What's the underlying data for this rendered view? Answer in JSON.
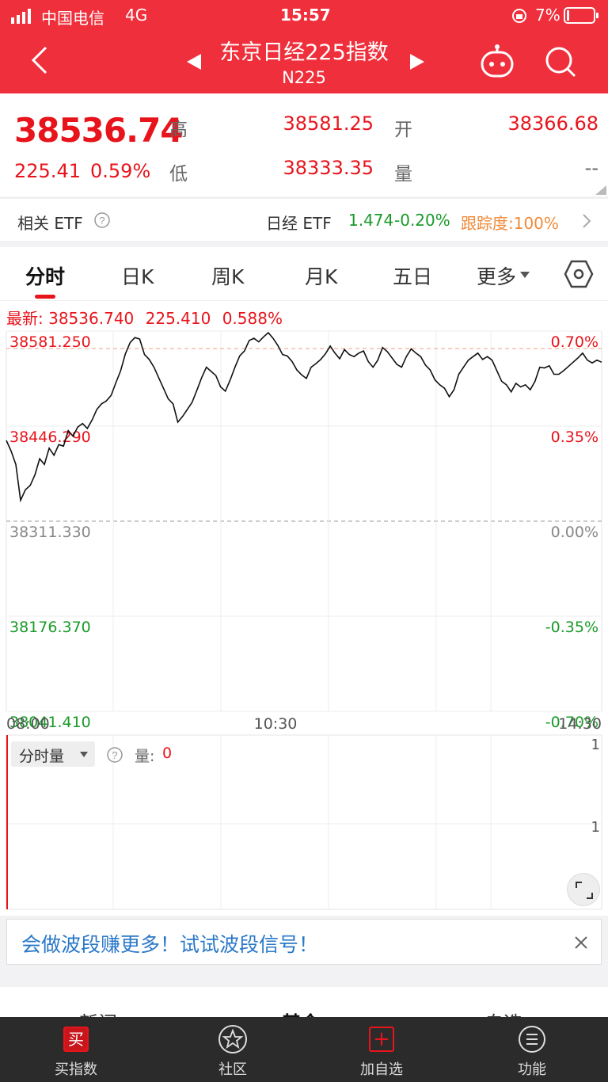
{
  "status_bar": {
    "carrier": "中国电信",
    "network": "4G",
    "time": "15:57",
    "battery": "7%"
  },
  "title_bar": {
    "title": "东京日经225指数",
    "subtitle": "N225"
  },
  "quote": {
    "last": "38536.74",
    "change": "225.41",
    "change_pct": "0.59%",
    "high_label": "高",
    "high": "38581.25",
    "low_label": "低",
    "low": "38333.35",
    "open_label": "开",
    "open": "38366.68",
    "volume_label": "量",
    "volume": "--"
  },
  "etf": {
    "label": "相关 ETF",
    "name": "日经 ETF",
    "price": "1.474",
    "change": "-0.20%",
    "tracking": "跟踪度:100%"
  },
  "tabs": [
    "分时",
    "日K",
    "周K",
    "月K",
    "五日",
    "更多"
  ],
  "chart": {
    "latest_label": "最新:",
    "latest_price": "38536.740",
    "latest_change": "225.410",
    "latest_pct": "0.588%",
    "y_left": [
      "38581.250",
      "38446.290",
      "38311.330",
      "38176.370",
      "38041.410"
    ],
    "y_right": [
      "0.70%",
      "0.35%",
      "0.00%",
      "-0.35%",
      "-0.70%"
    ],
    "x_labels": [
      "08:00",
      "10:30",
      "14:30"
    ],
    "volume_selector": "分时量",
    "volume_label": "量:",
    "volume_value": "0",
    "volume_axis": [
      "1",
      "1"
    ]
  },
  "chart_data": {
    "type": "line",
    "ylim": [
      38041.41,
      38581.25
    ],
    "xlabel": "",
    "ylabel": "",
    "x_ticks": [
      "08:00",
      "10:30",
      "14:30"
    ],
    "series": [
      {
        "values": [
          38426,
          38411,
          38392,
          38341,
          38356,
          38362,
          38377,
          38400,
          38392,
          38415,
          38405,
          38420,
          38418,
          38440,
          38432,
          38445,
          38450,
          38443,
          38455,
          38470,
          38478,
          38482,
          38490,
          38508,
          38525,
          38549,
          38565,
          38572,
          38570,
          38548,
          38541,
          38530,
          38515,
          38500,
          38485,
          38478,
          38452,
          38460,
          38470,
          38480,
          38497,
          38515,
          38530,
          38524,
          38518,
          38502,
          38496,
          38512,
          38530,
          38546,
          38553,
          38568,
          38571,
          38566,
          38573,
          38579,
          38571,
          38561,
          38548,
          38546,
          38538,
          38526,
          38519,
          38514,
          38530,
          38535,
          38541,
          38549,
          38560,
          38550,
          38542,
          38555,
          38548,
          38545,
          38550,
          38553,
          38538,
          38530,
          38540,
          38558,
          38552,
          38543,
          38534,
          38530,
          38545,
          38556,
          38550,
          38545,
          38533,
          38526,
          38512,
          38505,
          38500,
          38488,
          38498,
          38520,
          38530,
          38540,
          38545,
          38550,
          38541,
          38545,
          38540,
          38525,
          38510,
          38505,
          38495,
          38507,
          38502,
          38505,
          38498,
          38510,
          38530,
          38529,
          38532,
          38520,
          38520,
          38525,
          38531,
          38537,
          38543,
          38550,
          38540,
          38536,
          38540,
          38537
        ]
      }
    ],
    "grid": true,
    "baseline": 38311.33
  },
  "banner": {
    "text": "会做波段赚更多！试试波段信号！"
  },
  "lower_tabs": [
    "新闻",
    "基金",
    "自选"
  ],
  "nav": [
    {
      "label": "买指数",
      "icon": "买"
    },
    {
      "label": "社区",
      "icon": ""
    },
    {
      "label": "加自选",
      "icon": "+"
    },
    {
      "label": "功能",
      "icon": ""
    }
  ],
  "colors": {
    "header": "#ef2f3b",
    "up": "#e8141c",
    "down": "#1a9a2a",
    "tracking": "#f08a38"
  }
}
